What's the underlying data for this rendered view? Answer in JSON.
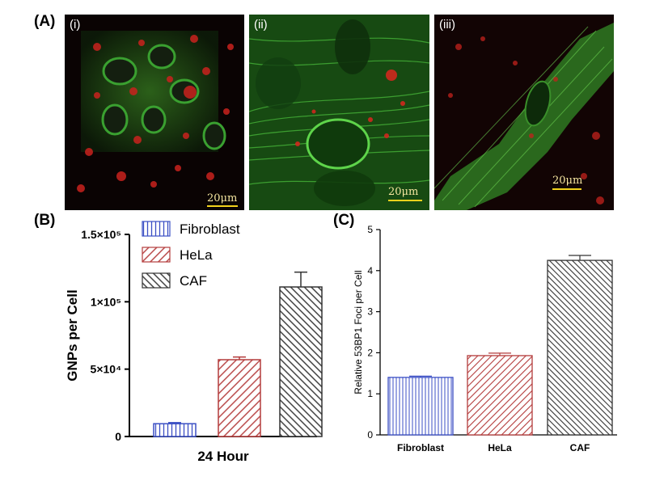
{
  "panel_A": {
    "letter": "(A)",
    "images": [
      {
        "label": "(i)",
        "scale": "20μm"
      },
      {
        "label": "(ii)",
        "scale": "20μm"
      },
      {
        "label": "(iii)",
        "scale": "20μm"
      }
    ]
  },
  "panel_B": {
    "letter": "(B)"
  },
  "panel_C": {
    "letter": "(C)"
  },
  "colors": {
    "fibroblast": "#3b4fc4",
    "hela": "#b43c3c",
    "caf": "#333333"
  },
  "chart_data": [
    {
      "type": "bar",
      "panel": "B",
      "categories": [
        "24 Hour"
      ],
      "series": [
        {
          "name": "Fibroblast",
          "values": [
            9500
          ],
          "errors": [
            800
          ]
        },
        {
          "name": "HeLa",
          "values": [
            57000
          ],
          "errors": [
            2000
          ]
        },
        {
          "name": "CAF",
          "values": [
            111000
          ],
          "errors": [
            11000
          ]
        }
      ],
      "ylabel": "GNPs per Cell",
      "xlabel": "24 Hour",
      "ylim": [
        0,
        150000
      ],
      "yticks": [
        0,
        50000,
        100000,
        150000
      ],
      "ytick_labels": [
        "0",
        "5×10⁴",
        "1×10⁵",
        "1.5×10⁵"
      ],
      "legend": [
        "Fibroblast",
        "HeLa",
        "CAF"
      ],
      "legend_placement": "top-left"
    },
    {
      "type": "bar",
      "panel": "C",
      "categories": [
        "Fibroblast",
        "HeLa",
        "CAF"
      ],
      "values": [
        1.4,
        1.93,
        4.25
      ],
      "errors": [
        0.03,
        0.06,
        0.12
      ],
      "ylabel": "Relative 53BP1 Foci per Cell",
      "ylim": [
        0,
        5
      ],
      "yticks": [
        0,
        1,
        2,
        3,
        4,
        5
      ]
    }
  ]
}
